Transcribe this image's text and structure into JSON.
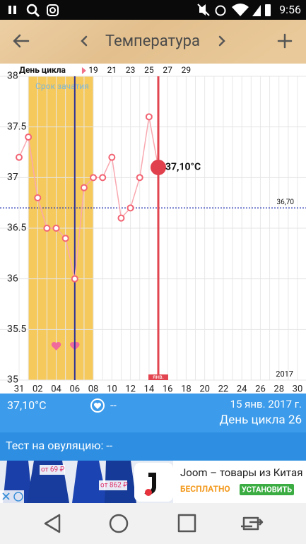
{
  "status_bar": {
    "time": "9:56"
  },
  "toolbar": {
    "title": "Температура"
  },
  "chart_data": {
    "type": "line",
    "x2_label": "День цикла",
    "x2_categories": [
      null,
      null,
      null,
      null,
      null,
      null,
      null,
      null,
      "19",
      null,
      "21",
      null,
      "23",
      null,
      "25",
      null,
      "27",
      null,
      "29",
      null,
      null,
      null,
      null,
      null,
      null,
      null,
      null,
      null,
      null,
      null,
      null
    ],
    "categories": [
      "31",
      null,
      "02",
      null,
      "04",
      null,
      "06",
      null,
      "08",
      null,
      "10",
      null,
      "12",
      null,
      "14",
      null,
      "16",
      null,
      "18",
      null,
      "20",
      null,
      "22",
      null,
      "24",
      null,
      "26",
      null,
      "28",
      null,
      "30"
    ],
    "series": [
      {
        "color": "#f26474",
        "values": [
          37.2,
          37.4,
          36.8,
          36.5,
          36.5,
          36.4,
          36.0,
          36.9,
          37.0,
          37.0,
          37.2,
          36.6,
          36.7,
          37.0,
          37.6,
          37.1,
          null,
          null,
          null,
          null,
          null,
          null,
          null,
          null,
          null,
          null,
          null,
          null,
          null,
          null,
          null
        ],
        "value_labels": [
          null,
          null,
          null,
          null,
          null,
          null,
          null,
          null,
          null,
          null,
          null,
          null,
          null,
          null,
          null,
          "37,10°C",
          null,
          null,
          null,
          null,
          null,
          null,
          null,
          null,
          null,
          null,
          null,
          null,
          null,
          null,
          null
        ]
      }
    ],
    "ylim": [
      35,
      38
    ],
    "yticks": [
      35,
      35.5,
      36,
      36.5,
      37,
      37.5,
      38
    ],
    "grid": true,
    "band": {
      "label": "Срок зачатия",
      "from": 1,
      "to": 8,
      "color": "#f6c95c"
    },
    "reference_line": {
      "value": 36.7,
      "label": "36,70",
      "color": "#1f2fb0"
    },
    "vlines": [
      {
        "at": 6,
        "color": "#2a2f9a"
      },
      {
        "at": 15,
        "color": "#e2454f",
        "label": "янв."
      }
    ],
    "year_label": "2017"
  },
  "info": {
    "temperature": "37,10°C",
    "mood": "--",
    "date": "15 янв. 2017 г.",
    "cycle_day": "День цикла 26"
  },
  "ovulation_test": "Тест на овуляцию: --",
  "ad": {
    "price_1": "от 69 ₽",
    "price_2": "от 862 ₽",
    "title": "Joom – товары из Китая",
    "free": "БЕСПЛАТНО",
    "button": "УСТАНОВИТЬ"
  }
}
